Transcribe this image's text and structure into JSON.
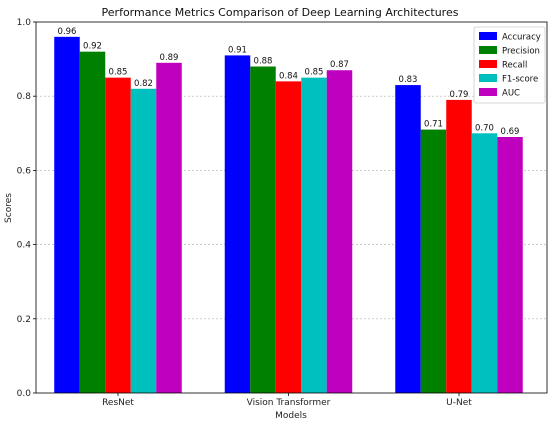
{
  "chart_data": {
    "type": "bar",
    "title": "Performance Metrics Comparison of Deep Learning Architectures",
    "xlabel": "Models",
    "ylabel": "Scores",
    "categories": [
      "ResNet",
      "Vision Transformer",
      "U-Net"
    ],
    "ylim": [
      0,
      1.0
    ],
    "yticks": [
      "0.0",
      "0.2",
      "0.4",
      "0.6",
      "0.8",
      "1.0"
    ],
    "grid": true,
    "legend_position": "top-right",
    "series": [
      {
        "name": "Accuracy",
        "color": "#0000ff",
        "values": [
          0.96,
          0.91,
          0.83
        ]
      },
      {
        "name": "Precision",
        "color": "#008000",
        "values": [
          0.92,
          0.88,
          0.71
        ]
      },
      {
        "name": "Recall",
        "color": "#ff0000",
        "values": [
          0.85,
          0.84,
          0.79
        ]
      },
      {
        "name": "F1-score",
        "color": "#00bfbf",
        "values": [
          0.82,
          0.85,
          0.7
        ]
      },
      {
        "name": "AUC",
        "color": "#bf00bf",
        "values": [
          0.89,
          0.87,
          0.69
        ]
      }
    ]
  }
}
